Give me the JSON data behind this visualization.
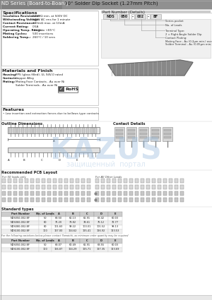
{
  "title_series": "ND Series (Board-to-Board)",
  "title_product": "90° Solder Dip Socket (1.27mm Pitch)",
  "header_bg": "#909090",
  "body_bg": "#ffffff",
  "specs_title": "Specifications",
  "specs": [
    [
      "Insulation Resistance:",
      "500MΩ min. at 500V DC"
    ],
    [
      "Withstanding Voltage:",
      "500V AC rms for 1 minute"
    ],
    [
      "Contact Resistance:",
      "200mΩ max. at 10mA"
    ],
    [
      "Current Rating:",
      "0.5A"
    ],
    [
      "Operating Temp. Range:",
      "-55°C to +85°C"
    ],
    [
      "Mating Cycles:",
      "500 insertions"
    ],
    [
      "Soldering Temp.:",
      "260°C / 10 secs"
    ]
  ],
  "materials_title": "Materials and Finish",
  "materials": [
    [
      "Housing:",
      "PPS (glass filled), UL 94V-0 rated"
    ],
    [
      "Contacts:",
      "Copper Alloy"
    ],
    [
      "Plating:",
      "Mating Face Contacts - Au over Ni"
    ],
    [
      "",
      "Solder Terminals - Au over Ni"
    ]
  ],
  "features_title": "Features",
  "features": "• Low insertion and extraction forces due to bellows type contacts",
  "part_number_title": "Part Number (Details)",
  "pn_parts": [
    "NDS",
    "050",
    "-",
    "002",
    "-",
    "BF"
  ],
  "bracket_labels": [
    "Series pocket",
    "No. of Leads",
    "Terminal Type:\n2 = Right Angle Solder Dip",
    "Contact Plating:\nMating Face - Au (0.2μm min.) over Ni\nSolder Terminal - Au (0.05μm min.) over Ni"
  ],
  "outline_title": "Outline Dimensions",
  "contact_title": "Contact Details",
  "pcb_title": "Recommended PCB Layout",
  "pcb_sub1": "For 50 leads only",
  "pcb_sub2": "For All Other Leads",
  "std_types_title": "Standard types",
  "table_headers": [
    "Part Number",
    "No. of Leads",
    "A",
    "B",
    "C",
    "D",
    "E"
  ],
  "table_data": [
    [
      "NDS050-002-BF",
      "50",
      "63.50",
      "61.13",
      "61.91",
      "63.42",
      "60.03"
    ],
    [
      "NDS060-002-BF",
      "60",
      "76.20",
      "73.82",
      "74.61",
      "76.12",
      "72.77"
    ],
    [
      "NDS080-002-BF",
      "80",
      "101.60",
      "99.22",
      "100.01",
      "101.52",
      "98.13"
    ],
    [
      "NDS100-002-BF",
      "100",
      "127.00",
      "124.62",
      "125.41",
      "126.92",
      "123.53"
    ]
  ],
  "note1": "For the following variations below please contact Yamaichi, as minimum order quantity may be required",
  "table_data2": [
    [
      "NDS050-002-BF",
      "50",
      "63.07",
      "60.49",
      "61.91",
      "63.55",
      "60.03"
    ],
    [
      "NDS100-002-BF",
      "100",
      "126.87",
      "124.29",
      "125.71",
      "127.35",
      "123.69"
    ]
  ],
  "watermark_text": "KAZUS",
  "watermark_subtext": "защищенный  портал",
  "rohs_text": "RoHS",
  "table_header_bg": "#cccccc",
  "table_alt_bg": "#efefef",
  "section_line_color": "#aaaaaa",
  "box_border": "#aaaaaa",
  "dim_line_color": "#777777"
}
